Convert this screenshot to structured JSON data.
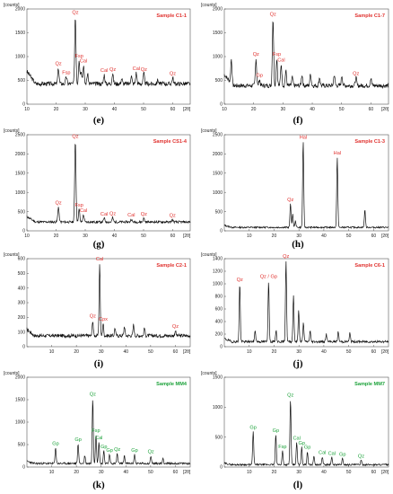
{
  "chart_data": [
    {
      "type": "line",
      "panel_label": "(e)",
      "sample": "Sample C1-1",
      "y_unit": "[counts]",
      "x_unit": "[2θ]",
      "xlim": [
        10,
        66
      ],
      "ylim": [
        0,
        2000
      ],
      "xticks": [
        10,
        20,
        30,
        40,
        50,
        60
      ],
      "yticks": [
        0,
        500,
        1000,
        1500,
        2000
      ],
      "baseline": 430,
      "noise": 45,
      "seed": 3,
      "annotation_color": "#e0312e",
      "peaks": [
        {
          "x": 20.8,
          "y": 760,
          "label": "Qz"
        },
        {
          "x": 23.5,
          "y": 580,
          "label": "Fsp"
        },
        {
          "x": 26.6,
          "y": 1840,
          "label": "Qz"
        },
        {
          "x": 27.9,
          "y": 920,
          "label": "Fsp"
        },
        {
          "x": 28.6,
          "y": 720,
          "label": ""
        },
        {
          "x": 29.4,
          "y": 820,
          "label": "Cal"
        },
        {
          "x": 30.8,
          "y": 640,
          "label": ""
        },
        {
          "x": 36.5,
          "y": 620,
          "label": "Cal"
        },
        {
          "x": 39.4,
          "y": 640,
          "label": "Qz"
        },
        {
          "x": 42.5,
          "y": 540,
          "label": ""
        },
        {
          "x": 45.8,
          "y": 600,
          "label": ""
        },
        {
          "x": 47.5,
          "y": 660,
          "label": "Cal"
        },
        {
          "x": 50.1,
          "y": 640,
          "label": "Qz"
        },
        {
          "x": 54.9,
          "y": 510,
          "label": ""
        },
        {
          "x": 60.0,
          "y": 560,
          "label": "Qz"
        }
      ]
    },
    {
      "type": "line",
      "panel_label": "(f)",
      "sample": "Sample C1-7",
      "y_unit": "[counts]",
      "x_unit": "[2θ]",
      "xlim": [
        10,
        66
      ],
      "ylim": [
        0,
        2000
      ],
      "xticks": [
        10,
        20,
        30,
        40,
        50,
        60
      ],
      "yticks": [
        0,
        500,
        1000,
        1500,
        2000
      ],
      "baseline": 390,
      "noise": 45,
      "seed": 7,
      "annotation_color": "#e0312e",
      "peaks": [
        {
          "x": 12.4,
          "y": 900,
          "label": ""
        },
        {
          "x": 20.8,
          "y": 960,
          "label": "Qz"
        },
        {
          "x": 22.0,
          "y": 520,
          "label": "Gp"
        },
        {
          "x": 26.6,
          "y": 1800,
          "label": "Qz"
        },
        {
          "x": 27.9,
          "y": 960,
          "label": "Fsp"
        },
        {
          "x": 29.4,
          "y": 840,
          "label": "Cal"
        },
        {
          "x": 31.0,
          "y": 700,
          "label": ""
        },
        {
          "x": 33.2,
          "y": 560,
          "label": ""
        },
        {
          "x": 36.5,
          "y": 620,
          "label": ""
        },
        {
          "x": 39.4,
          "y": 640,
          "label": ""
        },
        {
          "x": 42.5,
          "y": 560,
          "label": ""
        },
        {
          "x": 47.5,
          "y": 620,
          "label": ""
        },
        {
          "x": 50.1,
          "y": 600,
          "label": ""
        },
        {
          "x": 54.9,
          "y": 560,
          "label": "Qz"
        },
        {
          "x": 60.0,
          "y": 540,
          "label": ""
        }
      ]
    },
    {
      "type": "line",
      "panel_label": "(g)",
      "sample": "Sample CS1-4",
      "y_unit": "[counts]",
      "x_unit": "[2θ]",
      "xlim": [
        10,
        66
      ],
      "ylim": [
        0,
        2500
      ],
      "xticks": [
        10,
        20,
        30,
        40,
        50,
        60
      ],
      "yticks": [
        0,
        500,
        1000,
        1500,
        2000,
        2500
      ],
      "baseline": 230,
      "noise": 30,
      "seed": 11,
      "annotation_color": "#e0312e",
      "peaks": [
        {
          "x": 20.8,
          "y": 620,
          "label": "Qz"
        },
        {
          "x": 26.6,
          "y": 2350,
          "label": "Qz"
        },
        {
          "x": 27.9,
          "y": 560,
          "label": "Fsp"
        },
        {
          "x": 29.4,
          "y": 420,
          "label": "Cal"
        },
        {
          "x": 36.5,
          "y": 330,
          "label": "Cal"
        },
        {
          "x": 39.4,
          "y": 340,
          "label": "Qz"
        },
        {
          "x": 45.8,
          "y": 300,
          "label": "Cal"
        },
        {
          "x": 50.1,
          "y": 330,
          "label": "Qz"
        },
        {
          "x": 59.9,
          "y": 290,
          "label": "Qz"
        }
      ]
    },
    {
      "type": "line",
      "panel_label": "(h)",
      "sample": "Sample C1-3",
      "y_unit": "[counts]",
      "x_unit": "[2θ]",
      "xlim": [
        0,
        66
      ],
      "ylim": [
        0,
        2500
      ],
      "xticks": [
        10,
        20,
        30,
        40,
        50,
        60
      ],
      "yticks": [
        0,
        500,
        1000,
        1500,
        2000,
        2500
      ],
      "baseline": 90,
      "noise": 20,
      "seed": 13,
      "annotation_color": "#e0312e",
      "peaks": [
        {
          "x": 26.6,
          "y": 700,
          "label": "Qz"
        },
        {
          "x": 27.5,
          "y": 420,
          "label": ""
        },
        {
          "x": 28.6,
          "y": 250,
          "label": ""
        },
        {
          "x": 31.7,
          "y": 2330,
          "label": "Hal"
        },
        {
          "x": 45.4,
          "y": 1920,
          "label": "Hal"
        },
        {
          "x": 56.5,
          "y": 550,
          "label": ""
        }
      ]
    },
    {
      "type": "line",
      "panel_label": "(i)",
      "sample": "Sample C2-1",
      "y_unit": "[counts]",
      "x_unit": "[2θ]",
      "xlim": [
        0,
        66
      ],
      "ylim": [
        0,
        600
      ],
      "xticks": [
        10,
        20,
        30,
        40,
        50,
        60
      ],
      "yticks": [
        0,
        100,
        200,
        300,
        400,
        500,
        600
      ],
      "baseline": 75,
      "noise": 12,
      "seed": 17,
      "annotation_color": "#e0312e",
      "peaks": [
        {
          "x": 26.6,
          "y": 180,
          "label": "Qz"
        },
        {
          "x": 29.4,
          "y": 570,
          "label": "Cal"
        },
        {
          "x": 30.8,
          "y": 160,
          "label": "Cpx"
        },
        {
          "x": 35.6,
          "y": 130,
          "label": ""
        },
        {
          "x": 39.4,
          "y": 140,
          "label": ""
        },
        {
          "x": 43.1,
          "y": 150,
          "label": ""
        },
        {
          "x": 47.5,
          "y": 130,
          "label": ""
        },
        {
          "x": 60.0,
          "y": 110,
          "label": "Qz"
        }
      ]
    },
    {
      "type": "line",
      "panel_label": "(j)",
      "sample": "Sample C6-1",
      "y_unit": "[counts]",
      "x_unit": "[2θ]",
      "xlim": [
        0,
        66
      ],
      "ylim": [
        0,
        1400
      ],
      "xticks": [
        10,
        20,
        30,
        40,
        50,
        60
      ],
      "yticks": [
        0,
        200,
        400,
        600,
        800,
        1000,
        1200,
        1400
      ],
      "baseline": 80,
      "noise": 18,
      "seed": 19,
      "annotation_color": "#e0312e",
      "peaks": [
        {
          "x": 6.2,
          "y": 1000,
          "label": "Qz"
        },
        {
          "x": 12.4,
          "y": 260,
          "label": ""
        },
        {
          "x": 17.8,
          "y": 1050,
          "label": "Qz / Gp"
        },
        {
          "x": 20.8,
          "y": 260,
          "label": ""
        },
        {
          "x": 24.8,
          "y": 1370,
          "label": "Qz"
        },
        {
          "x": 27.8,
          "y": 820,
          "label": ""
        },
        {
          "x": 29.9,
          "y": 580,
          "label": ""
        },
        {
          "x": 31.8,
          "y": 380,
          "label": ""
        },
        {
          "x": 34.5,
          "y": 250,
          "label": ""
        },
        {
          "x": 41.0,
          "y": 200,
          "label": ""
        },
        {
          "x": 45.8,
          "y": 240,
          "label": ""
        },
        {
          "x": 50.5,
          "y": 220,
          "label": ""
        }
      ]
    },
    {
      "type": "line",
      "panel_label": "(k)",
      "sample": "Sample MM4",
      "y_unit": "[counts]",
      "x_unit": "[2θ]",
      "xlim": [
        0,
        66
      ],
      "ylim": [
        0,
        2000
      ],
      "xticks": [
        10,
        20,
        30,
        40,
        50,
        60
      ],
      "yticks": [
        0,
        500,
        1000,
        1500,
        2000
      ],
      "baseline": 80,
      "noise": 22,
      "seed": 23,
      "annotation_color": "#1ca23a",
      "peaks": [
        {
          "x": 11.6,
          "y": 430,
          "label": "Gp"
        },
        {
          "x": 20.7,
          "y": 520,
          "label": "Gp"
        },
        {
          "x": 23.4,
          "y": 260,
          "label": ""
        },
        {
          "x": 26.6,
          "y": 1530,
          "label": "Qz"
        },
        {
          "x": 27.9,
          "y": 720,
          "label": "Fsp"
        },
        {
          "x": 29.1,
          "y": 560,
          "label": "Cal"
        },
        {
          "x": 31.1,
          "y": 360,
          "label": "Gp"
        },
        {
          "x": 33.4,
          "y": 280,
          "label": "Gp"
        },
        {
          "x": 36.5,
          "y": 300,
          "label": "Qz"
        },
        {
          "x": 39.4,
          "y": 260,
          "label": ""
        },
        {
          "x": 43.5,
          "y": 280,
          "label": "Gp"
        },
        {
          "x": 50.1,
          "y": 250,
          "label": "Qz"
        },
        {
          "x": 55.0,
          "y": 200,
          "label": ""
        }
      ]
    },
    {
      "type": "line",
      "panel_label": "(l)",
      "sample": "Sample MM7",
      "y_unit": "[counts]",
      "x_unit": "[2θ]",
      "xlim": [
        0,
        66
      ],
      "ylim": [
        0,
        1500
      ],
      "xticks": [
        10,
        20,
        30,
        40,
        50,
        60
      ],
      "yticks": [
        0,
        500,
        1000,
        1500
      ],
      "baseline": 40,
      "noise": 14,
      "seed": 29,
      "annotation_color": "#1ca23a",
      "peaks": [
        {
          "x": 11.6,
          "y": 590,
          "label": "Gp"
        },
        {
          "x": 20.7,
          "y": 540,
          "label": "Gp"
        },
        {
          "x": 23.4,
          "y": 270,
          "label": "Fsp"
        },
        {
          "x": 26.6,
          "y": 1130,
          "label": "Qz"
        },
        {
          "x": 29.1,
          "y": 410,
          "label": "Cal"
        },
        {
          "x": 31.1,
          "y": 330,
          "label": "Gp"
        },
        {
          "x": 33.4,
          "y": 260,
          "label": "Gp"
        },
        {
          "x": 36.0,
          "y": 180,
          "label": ""
        },
        {
          "x": 39.4,
          "y": 170,
          "label": "Cal"
        },
        {
          "x": 43.2,
          "y": 160,
          "label": "Cal"
        },
        {
          "x": 47.5,
          "y": 140,
          "label": "Gp"
        },
        {
          "x": 55.0,
          "y": 110,
          "label": "Qz"
        }
      ]
    }
  ]
}
